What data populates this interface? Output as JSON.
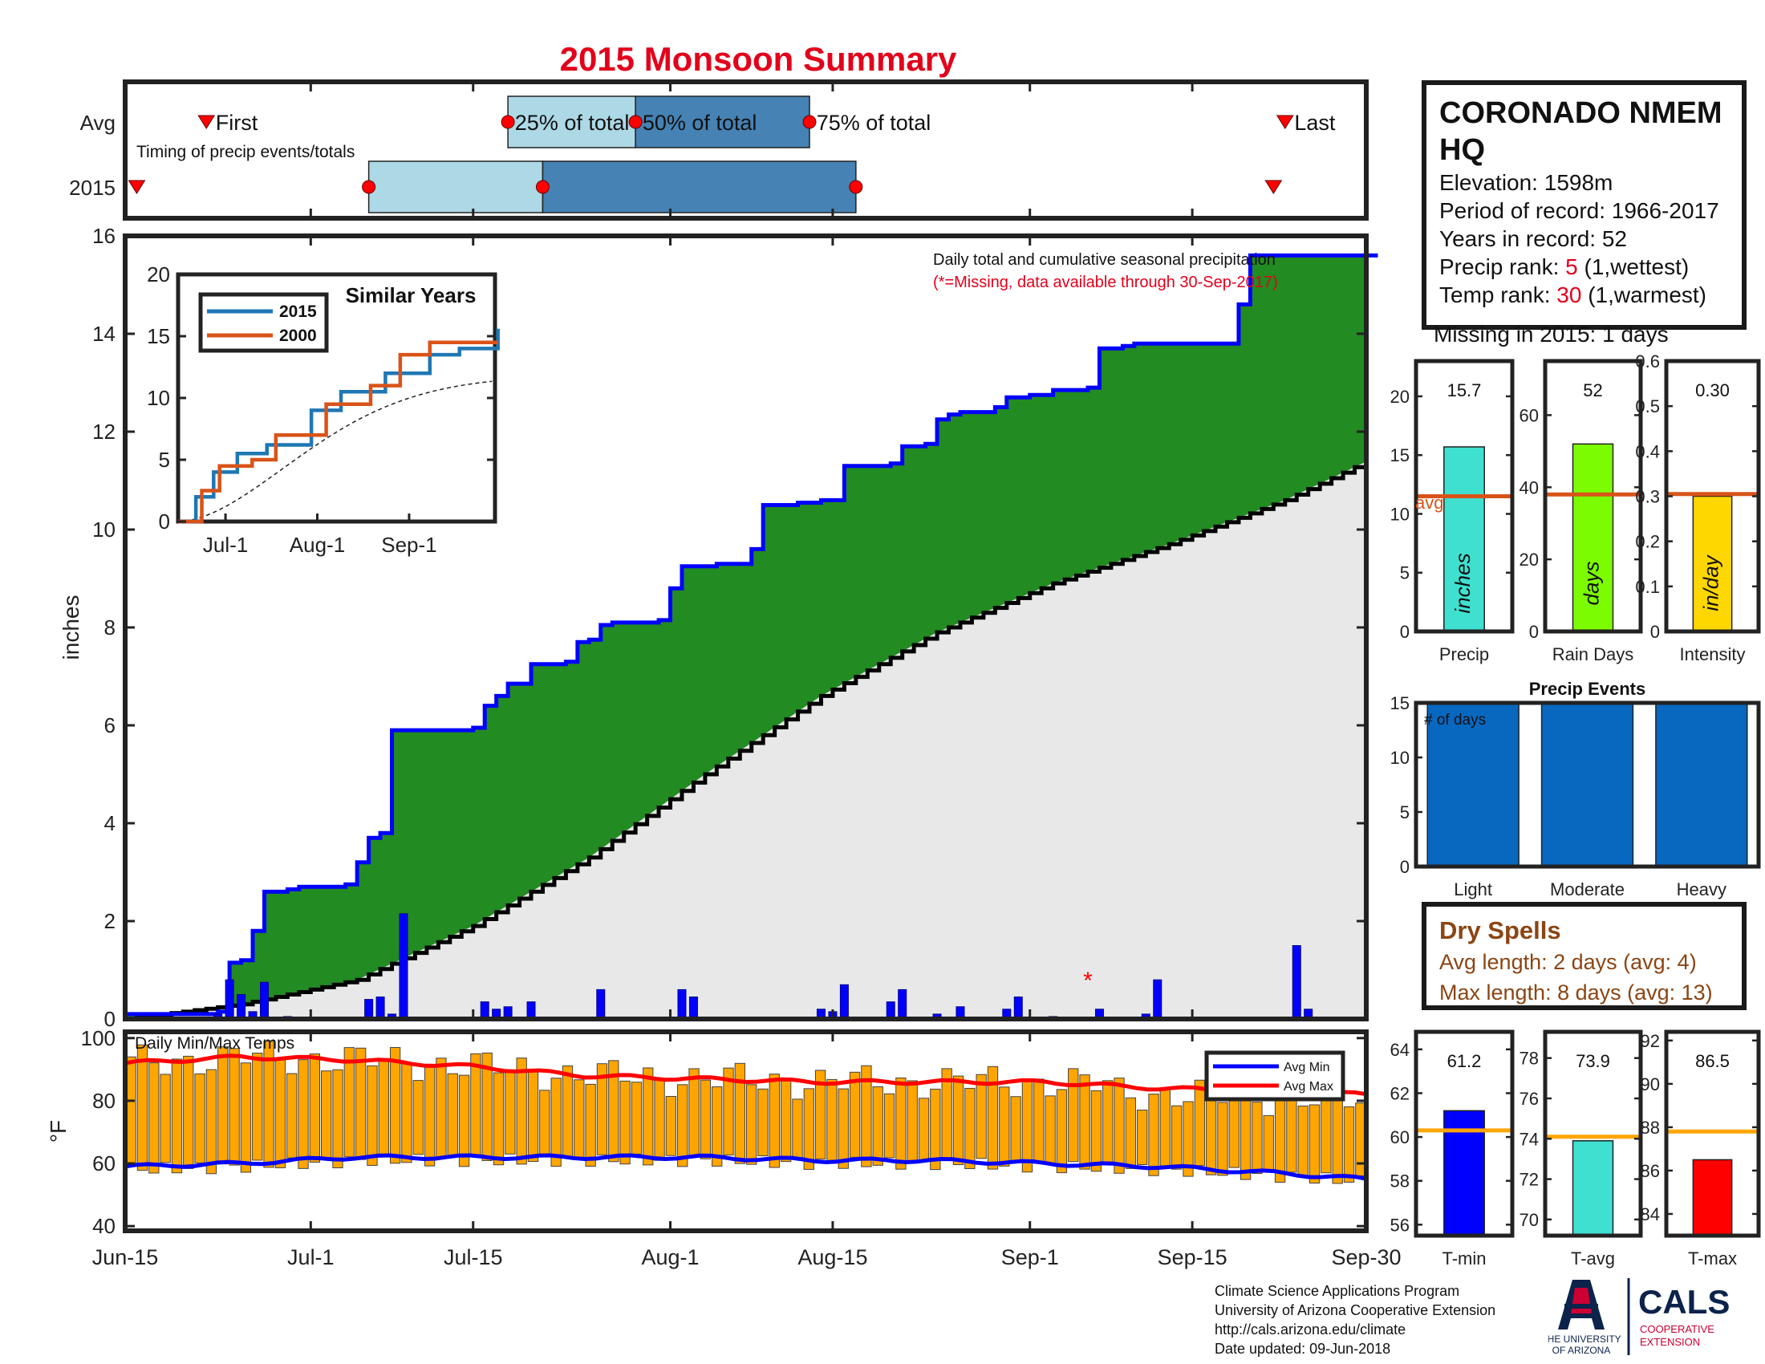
{
  "title": "2015 Monsoon Summary",
  "timing": {
    "row_labels": [
      "Avg",
      "2015"
    ],
    "subtitle": "Timing of precip events/totals",
    "avg": {
      "first": "Jun-22",
      "p25": "Jul-18",
      "p50": "Jul-29",
      "p75": "Aug-13",
      "last": "Sep-23",
      "first_label": "First",
      "p25_label": "25% of total",
      "p50_label": "50% of total",
      "p75_label": "75% of total",
      "last_label": "Last"
    },
    "y2015": {
      "first": "Jun-16",
      "p25": "Jul-6",
      "p50": "Jul-21",
      "p75": "Aug-17",
      "last": "Sep-22"
    }
  },
  "main": {
    "ylabel": "inches",
    "legend_line1": "Daily total and cumulative seasonal precipitation",
    "legend_line2": "(*=Missing, data available through 30-Sep-2017)",
    "missing_marker": "*",
    "missing_day": "Sep-6"
  },
  "inset": {
    "title": "Similar Years",
    "series_names": [
      "2015",
      "2000"
    ],
    "xticks": [
      "Jul-1",
      "Aug-1",
      "Sep-1"
    ]
  },
  "temps": {
    "title": "Daily Min/Max Temps",
    "ylabel": "°F",
    "legend": [
      "Avg Min",
      "Avg Max"
    ]
  },
  "x_ticks": [
    "Jun-15",
    "Jul-1",
    "Jul-15",
    "Aug-1",
    "Aug-15",
    "Sep-1",
    "Sep-15",
    "Sep-30"
  ],
  "station": {
    "name": "CORONADO NMEM HQ",
    "elevation": "Elevation: 1598m",
    "period": "Period of record: 1966-2017",
    "years": "Years in record: 52",
    "precip_rank_label": "Precip rank: ",
    "precip_rank": "5",
    "precip_rank_note": " (1,wettest)",
    "temp_rank_label": "Temp rank: ",
    "temp_rank": "30",
    "temp_rank_note": " (1,warmest)",
    "missing": "Missing in 2015: 1 days"
  },
  "stats": {
    "precip": {
      "label": "Precip",
      "unit": "inches",
      "value": 15.7,
      "value_text": "15.7",
      "avg": 11.5,
      "ylim": [
        0,
        23
      ],
      "yticks": [
        0,
        5,
        10,
        15,
        20
      ],
      "avg_label": "avg",
      "color": "#40e0d0"
    },
    "raindays": {
      "label": "Rain Days",
      "unit": "days",
      "value": 52,
      "value_text": "52",
      "avg": 38,
      "ylim": [
        0,
        75
      ],
      "yticks": [
        0,
        20,
        40,
        60
      ],
      "color": "#7cfc00"
    },
    "intensity": {
      "label": "Intensity",
      "unit": "in/day",
      "value": 0.3,
      "value_text": "0.30",
      "avg": 0.305,
      "ylim": [
        0,
        0.6
      ],
      "yticks": [
        0,
        0.1,
        0.2,
        0.3,
        0.4,
        0.5,
        0.6
      ],
      "color": "#ffd700"
    }
  },
  "events": {
    "title": "Precip Events",
    "note": "# of days",
    "categories": [
      "Light",
      "Moderate",
      "Heavy"
    ],
    "values": [
      15,
      15,
      15
    ],
    "ylim": [
      0,
      15
    ],
    "yticks": [
      0,
      5,
      10,
      15
    ],
    "color": "#0868c0"
  },
  "dry": {
    "title": "Dry Spells",
    "avg_line": "Avg length: 2 days (avg: 4)",
    "max_line": "Max length: 8 days (avg: 13)"
  },
  "temp_stats": {
    "tmin": {
      "label": "T-min",
      "value": 61.2,
      "value_text": "61.2",
      "avg": 60.3,
      "ylim": [
        55.5,
        64.8
      ],
      "yticks": [
        56,
        58,
        60,
        62,
        64
      ],
      "color": "#0000ff"
    },
    "tavg": {
      "label": "T-avg",
      "value": 73.9,
      "value_text": "73.9",
      "avg": 74.1,
      "ylim": [
        69.2,
        79.3
      ],
      "yticks": [
        70,
        72,
        74,
        76,
        78
      ],
      "color": "#40e0d0"
    },
    "tmax": {
      "label": "T-max",
      "value": 86.5,
      "value_text": "86.5",
      "avg": 87.8,
      "ylim": [
        83.0,
        92.4
      ],
      "yticks": [
        84,
        86,
        88,
        90,
        92
      ],
      "color": "#ff0000"
    }
  },
  "credits": [
    "Climate Science Applications Program",
    "University of Arizona Cooperative Extension",
    "http://cals.arizona.edu/climate",
    " Date updated: 09-Jun-2018"
  ],
  "logos": {
    "ua_line1": "THE UNIVERSITY",
    "ua_line2": "OF ARIZONA",
    "cals": "CALS",
    "cals_sub1": "COOPERATIVE",
    "cals_sub2": "EXTENSION"
  },
  "chart_data": [
    {
      "type": "area",
      "title": "Daily total and cumulative seasonal precipitation",
      "ylabel": "inches",
      "xlim": [
        "Jun-15",
        "Sep-30"
      ],
      "ylim": [
        0,
        16
      ],
      "cumulative_2015": [
        [
          0,
          0.1
        ],
        [
          8,
          0.15
        ],
        [
          9,
          1.15
        ],
        [
          10,
          1.2
        ],
        [
          11,
          1.8
        ],
        [
          12,
          2.6
        ],
        [
          14,
          2.65
        ],
        [
          15,
          2.7
        ],
        [
          19,
          2.75
        ],
        [
          20,
          3.2
        ],
        [
          21,
          3.7
        ],
        [
          22,
          3.8
        ],
        [
          23,
          5.9
        ],
        [
          30,
          5.95
        ],
        [
          31,
          6.4
        ],
        [
          32,
          6.6
        ],
        [
          33,
          6.85
        ],
        [
          35,
          7.25
        ],
        [
          38,
          7.3
        ],
        [
          39,
          7.7
        ],
        [
          40,
          7.75
        ],
        [
          41,
          8.05
        ],
        [
          42,
          8.1
        ],
        [
          46,
          8.15
        ],
        [
          47,
          8.8
        ],
        [
          48,
          9.25
        ],
        [
          51,
          9.3
        ],
        [
          54,
          9.6
        ],
        [
          55,
          10.5
        ],
        [
          58,
          10.55
        ],
        [
          60,
          10.6
        ],
        [
          62,
          11.3
        ],
        [
          66,
          11.35
        ],
        [
          67,
          11.7
        ],
        [
          69,
          11.75
        ],
        [
          70,
          12.25
        ],
        [
          71,
          12.35
        ],
        [
          72,
          12.4
        ],
        [
          75,
          12.5
        ],
        [
          76,
          12.7
        ],
        [
          78,
          12.75
        ],
        [
          80,
          12.85
        ],
        [
          83,
          12.9
        ],
        [
          84,
          13.7
        ],
        [
          86,
          13.75
        ],
        [
          87,
          13.8
        ],
        [
          95,
          13.8
        ],
        [
          96,
          14.6
        ],
        [
          97,
          15.6
        ],
        [
          108,
          15.6
        ]
      ],
      "average_cumulative": [
        [
          0,
          0
        ],
        [
          10,
          0.3
        ],
        [
          20,
          0.8
        ],
        [
          30,
          1.9
        ],
        [
          40,
          3.3
        ],
        [
          50,
          5.0
        ],
        [
          60,
          6.6
        ],
        [
          70,
          7.9
        ],
        [
          80,
          8.9
        ],
        [
          90,
          9.7
        ],
        [
          100,
          10.6
        ],
        [
          108,
          11.5
        ]
      ],
      "daily_bars": [
        [
          8,
          0.1
        ],
        [
          9,
          0.8
        ],
        [
          10,
          0.5
        ],
        [
          11,
          0.15
        ],
        [
          12,
          0.75
        ],
        [
          14,
          0.05
        ],
        [
          21,
          0.4
        ],
        [
          22,
          0.45
        ],
        [
          23,
          0.1
        ],
        [
          24,
          2.15
        ],
        [
          31,
          0.35
        ],
        [
          32,
          0.2
        ],
        [
          33,
          0.25
        ],
        [
          35,
          0.35
        ],
        [
          41,
          0.6
        ],
        [
          48,
          0.6
        ],
        [
          49,
          0.45
        ],
        [
          60,
          0.2
        ],
        [
          61,
          0.15
        ],
        [
          62,
          0.7
        ],
        [
          66,
          0.35
        ],
        [
          67,
          0.6
        ],
        [
          70,
          0.1
        ],
        [
          72,
          0.25
        ],
        [
          76,
          0.2
        ],
        [
          77,
          0.45
        ],
        [
          80,
          0.05
        ],
        [
          84,
          0.2
        ],
        [
          88,
          0.1
        ],
        [
          89,
          0.8
        ],
        [
          101,
          1.5
        ],
        [
          102,
          0.2
        ]
      ],
      "x_unit": "days since Jun-15"
    },
    {
      "type": "line",
      "title": "Similar Years",
      "x": [
        "Jun-15",
        "Jul-1",
        "Aug-1",
        "Sep-1",
        "Sep-30"
      ],
      "ylim": [
        0,
        20
      ],
      "series": [
        {
          "name": "2015",
          "points": [
            [
              0,
              0
            ],
            [
              6,
              2
            ],
            [
              12,
              4
            ],
            [
              20,
              5.5
            ],
            [
              30,
              6.2
            ],
            [
              45,
              9
            ],
            [
              55,
              10.5
            ],
            [
              70,
              12
            ],
            [
              85,
              13.5
            ],
            [
              95,
              14
            ],
            [
              108,
              15.6
            ]
          ],
          "color": "#1f77b4"
        },
        {
          "name": "2000",
          "points": [
            [
              0,
              0
            ],
            [
              8,
              2.5
            ],
            [
              14,
              4.5
            ],
            [
              25,
              5
            ],
            [
              33,
              7
            ],
            [
              50,
              9.5
            ],
            [
              65,
              11
            ],
            [
              75,
              13.5
            ],
            [
              85,
              14.5
            ],
            [
              108,
              14.5
            ]
          ],
          "color": "#d95319"
        }
      ]
    },
    {
      "type": "bar",
      "title": "Daily Min/Max Temps",
      "ylabel": "°F",
      "ylim": [
        40,
        100
      ],
      "avg_max": [
        [
          0,
          92
        ],
        [
          10,
          94
        ],
        [
          20,
          93
        ],
        [
          30,
          91
        ],
        [
          40,
          88
        ],
        [
          50,
          87
        ],
        [
          60,
          86
        ],
        [
          70,
          86
        ],
        [
          80,
          86
        ],
        [
          90,
          84
        ],
        [
          100,
          83
        ],
        [
          108,
          82
        ]
      ],
      "avg_min": [
        [
          0,
          59
        ],
        [
          10,
          60
        ],
        [
          20,
          62
        ],
        [
          30,
          62
        ],
        [
          40,
          62
        ],
        [
          50,
          62
        ],
        [
          60,
          61
        ],
        [
          70,
          61
        ],
        [
          80,
          60
        ],
        [
          90,
          59
        ],
        [
          100,
          57
        ],
        [
          108,
          55
        ]
      ]
    },
    {
      "type": "bar",
      "title": "Precip",
      "categories": [
        "Precip"
      ],
      "values": [
        15.7
      ],
      "avg": 11.5
    },
    {
      "type": "bar",
      "title": "Rain Days",
      "categories": [
        "Rain Days"
      ],
      "values": [
        52
      ],
      "avg": 38
    },
    {
      "type": "bar",
      "title": "Intensity",
      "categories": [
        "Intensity"
      ],
      "values": [
        0.3
      ],
      "avg": 0.305
    },
    {
      "type": "bar",
      "title": "Precip Events",
      "categories": [
        "Light",
        "Moderate",
        "Heavy"
      ],
      "values": [
        15,
        15,
        15
      ]
    },
    {
      "type": "bar",
      "title": "T-min",
      "categories": [
        "T-min"
      ],
      "values": [
        61.2
      ],
      "avg": 60.3
    },
    {
      "type": "bar",
      "title": "T-avg",
      "categories": [
        "T-avg"
      ],
      "values": [
        73.9
      ],
      "avg": 74.1
    },
    {
      "type": "bar",
      "title": "T-max",
      "categories": [
        "T-max"
      ],
      "values": [
        86.5
      ],
      "avg": 87.8
    }
  ]
}
